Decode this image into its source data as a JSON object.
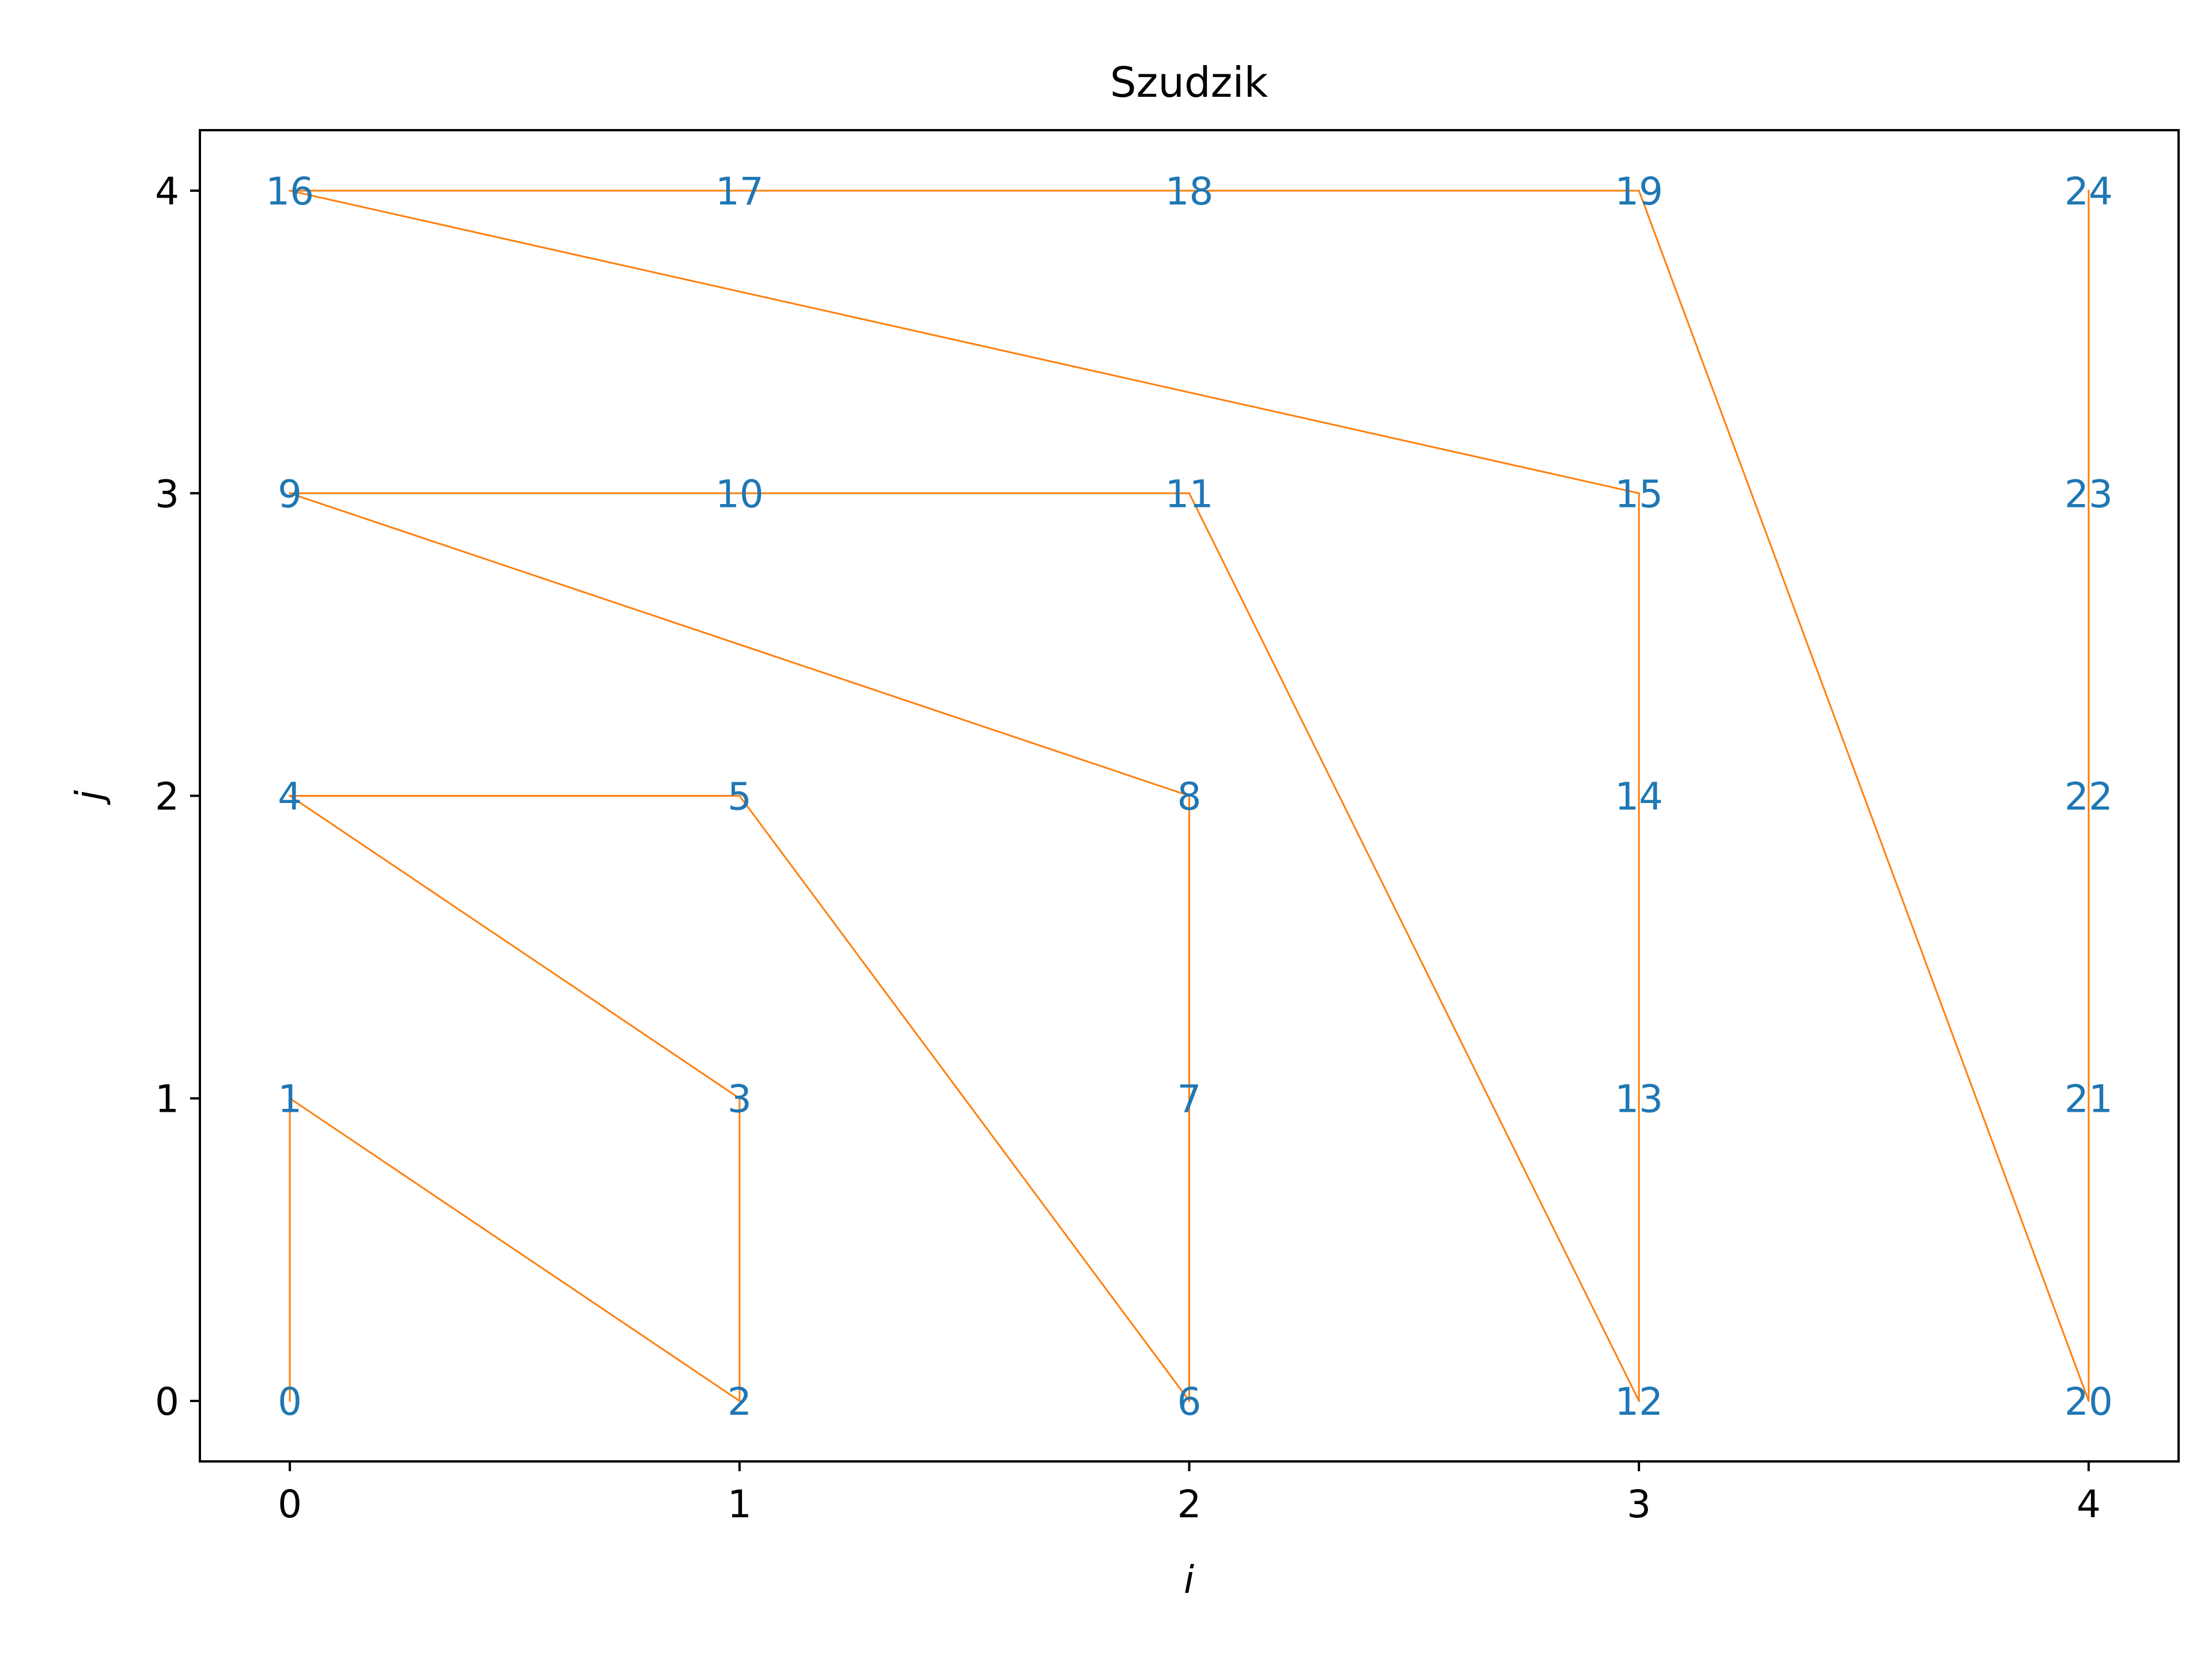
{
  "chart_data": {
    "type": "line",
    "title": "Szudzik",
    "xlabel": "i",
    "ylabel": "j",
    "xlim": [
      -0.2,
      4.2
    ],
    "ylim": [
      -0.2,
      4.2
    ],
    "xticks": [
      0,
      1,
      2,
      3,
      4
    ],
    "yticks": [
      0,
      1,
      2,
      3,
      4
    ],
    "grid": false,
    "line_color": "#ff7f0e",
    "label_color": "#1f77b4",
    "points": [
      {
        "label": "0",
        "x": 0,
        "y": 0
      },
      {
        "label": "1",
        "x": 0,
        "y": 1
      },
      {
        "label": "2",
        "x": 1,
        "y": 0
      },
      {
        "label": "3",
        "x": 1,
        "y": 1
      },
      {
        "label": "4",
        "x": 0,
        "y": 2
      },
      {
        "label": "5",
        "x": 1,
        "y": 2
      },
      {
        "label": "6",
        "x": 2,
        "y": 0
      },
      {
        "label": "7",
        "x": 2,
        "y": 1
      },
      {
        "label": "8",
        "x": 2,
        "y": 2
      },
      {
        "label": "9",
        "x": 0,
        "y": 3
      },
      {
        "label": "10",
        "x": 1,
        "y": 3
      },
      {
        "label": "11",
        "x": 2,
        "y": 3
      },
      {
        "label": "12",
        "x": 3,
        "y": 0
      },
      {
        "label": "13",
        "x": 3,
        "y": 1
      },
      {
        "label": "14",
        "x": 3,
        "y": 2
      },
      {
        "label": "15",
        "x": 3,
        "y": 3
      },
      {
        "label": "16",
        "x": 0,
        "y": 4
      },
      {
        "label": "17",
        "x": 1,
        "y": 4
      },
      {
        "label": "18",
        "x": 2,
        "y": 4
      },
      {
        "label": "19",
        "x": 3,
        "y": 4
      },
      {
        "label": "20",
        "x": 4,
        "y": 0
      },
      {
        "label": "21",
        "x": 4,
        "y": 1
      },
      {
        "label": "22",
        "x": 4,
        "y": 2
      },
      {
        "label": "23",
        "x": 4,
        "y": 3
      },
      {
        "label": "24",
        "x": 4,
        "y": 4
      }
    ]
  }
}
